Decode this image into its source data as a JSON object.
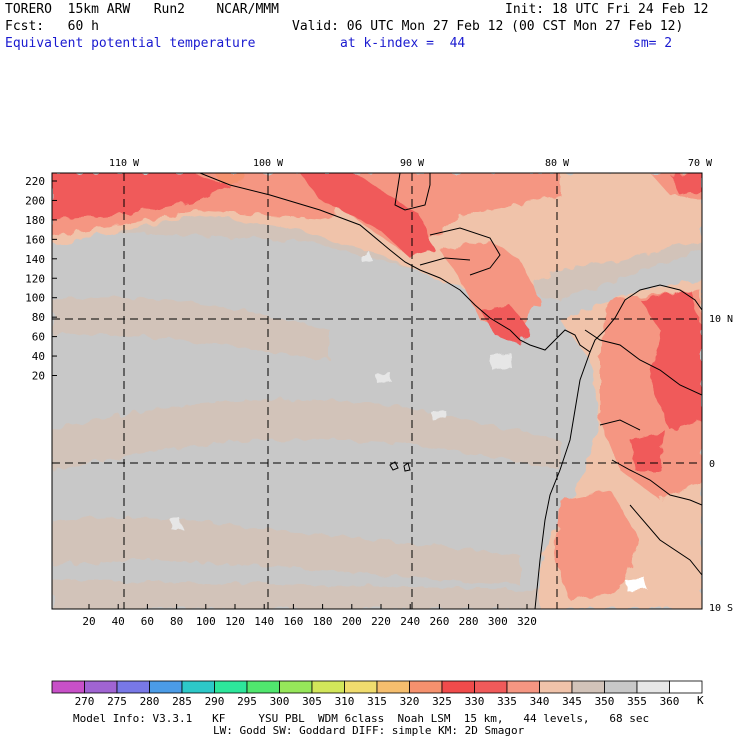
{
  "header": {
    "line1_left": "TORERO  15km ARW   Run2    NCAR/MMM",
    "line1_right": "Init: 18 UTC Fri 24 Feb 12",
    "line2_left": "Fcst:   60 h",
    "line2_right": "Valid: 06 UTC Mon 27 Feb 12 (00 CST Mon 27 Feb 12)",
    "line3_field": "Equivalent potential temperature",
    "line3_level": "at k-index =  44",
    "line3_smooth": "sm= 2"
  },
  "map": {
    "top_lon_labels": [
      "110 W",
      "100 W",
      "90 W",
      "80 W",
      "70 W"
    ],
    "right_lat_labels": [
      "10 N",
      "0",
      "10 S"
    ],
    "y_ticks": [
      "220",
      "200",
      "180",
      "160",
      "140",
      "120",
      "100",
      "80",
      "60",
      "40",
      "20"
    ],
    "x_ticks": [
      "20",
      "40",
      "60",
      "80",
      "100",
      "120",
      "140",
      "160",
      "180",
      "200",
      "220",
      "240",
      "260",
      "280",
      "300",
      "320"
    ]
  },
  "colorbar": {
    "labels": [
      "270",
      "275",
      "280",
      "285",
      "290",
      "295",
      "300",
      "305",
      "310",
      "315",
      "320",
      "325",
      "330",
      "335",
      "340",
      "345",
      "350",
      "355",
      "360"
    ],
    "unit": "K",
    "colors": [
      "#c850c8",
      "#a064d2",
      "#7878e6",
      "#4b9be6",
      "#2dc8c8",
      "#2de69b",
      "#50e66e",
      "#96e65a",
      "#d2e65a",
      "#f0dc6e",
      "#f5be6e",
      "#f5916e",
      "#f04b4b",
      "#f05a5a",
      "#f59682",
      "#f0c3aa",
      "#d2c3b9",
      "#c8c8c8",
      "#e6e6e6",
      "#ffffff"
    ]
  },
  "footer": {
    "line1": "Model Info: V3.3.1   KF     YSU PBL  WDM 6class  Noah LSM  15 km,   44 levels,   68 sec",
    "line2": "LW: Godd SW: Goddard DIFF: simple KM: 2D Smagor"
  }
}
